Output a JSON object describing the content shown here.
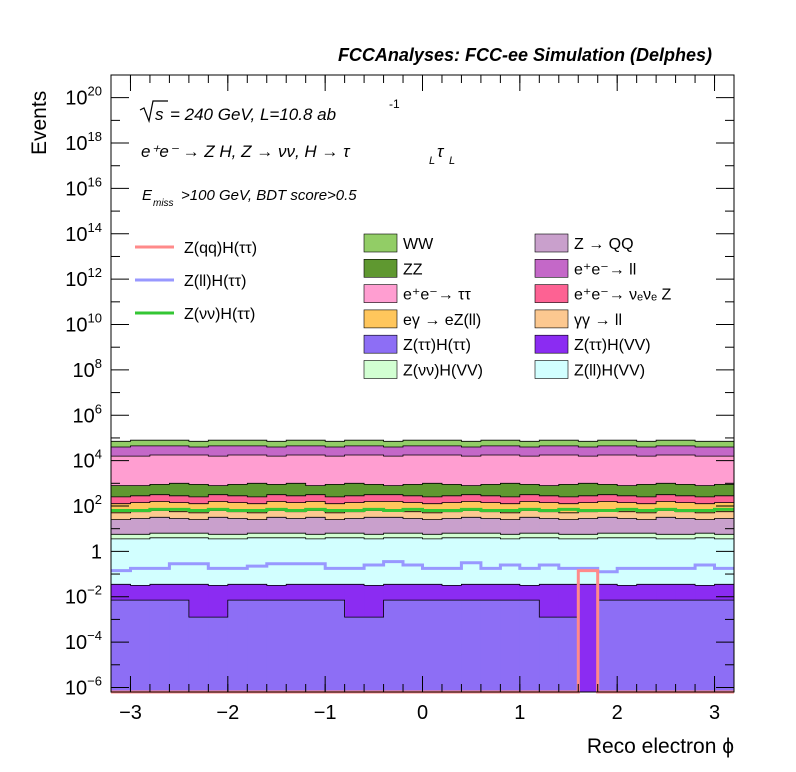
{
  "header": {
    "title": "FCCAnalyses: FCC-ee Simulation (Delphes)"
  },
  "annotations": {
    "line1_sqrt": "s",
    "line1_rest": "= 240 GeV, L=10.8 ab",
    "line1_exp": "-1",
    "line2": "e⁺e⁻ → Z H, Z → νν, H → τ",
    "line2_sub1": "L",
    "line2_tau2": "τ",
    "line2_sub2": "L",
    "line3_E": "E",
    "line3_sub": "miss",
    "line3_rest": ">100 GeV, BDT score>0.5"
  },
  "colors": {
    "WW": "#92cd66",
    "ZZ": "#5f9830",
    "ee_tautau": "#ff9ed1",
    "egamma_eZll": "#ffc65c",
    "Ztautau_Htautau": "#8d6ef5",
    "Znunu_HVV": "#d2ffd2",
    "Z_QQ": "#c9a0cc",
    "ee_ll": "#c468c8",
    "ee_nunuZ": "#fd6293",
    "gammagamma_ll": "#fcc890",
    "Ztautau_HVV": "#8b2cf2",
    "Zll_HVV": "#d2ffff",
    "sig_qq": "#ff8a8a",
    "sig_ll": "#9898ff",
    "sig_nunu": "#34c634"
  },
  "chart_data": {
    "type": "area",
    "title": "FCCAnalyses: FCC-ee Simulation (Delphes)",
    "xlabel": "Reco electron ϕ",
    "ylabel": "Events",
    "xlim": [
      -3.2,
      3.2
    ],
    "ylim_log10": [
      -6.2,
      21
    ],
    "y_scale": "log",
    "grid": false,
    "xticks": [
      "−3",
      "−2",
      "−1",
      "0",
      "1",
      "2",
      "3"
    ],
    "yticks": [
      "10^-6",
      "10^-4",
      "10^-2",
      "1",
      "10^2",
      "10^4",
      "10^6",
      "10^8",
      "10^10",
      "10^12",
      "10^14",
      "10^16",
      "10^18",
      "10^20"
    ],
    "legend_signal": [
      {
        "key": "sig_qq",
        "label": "Z(qq)H(ττ)"
      },
      {
        "key": "sig_ll",
        "label": "Z(ll)H(ττ)"
      },
      {
        "key": "sig_nunu",
        "label": "Z(νν)H(ττ)"
      }
    ],
    "legend_bkg": [
      {
        "key": "WW",
        "label": "WW"
      },
      {
        "key": "Z_QQ",
        "label": "Z → QQ"
      },
      {
        "key": "ZZ",
        "label": "ZZ"
      },
      {
        "key": "ee_ll",
        "label": "e⁺e⁻→ ll"
      },
      {
        "key": "ee_tautau",
        "label": "e⁺e⁻→ ττ"
      },
      {
        "key": "ee_nunuZ",
        "label": "e⁺e⁻→ νₑνₑ Z"
      },
      {
        "key": "egamma_eZll",
        "label": "eγ → eZ(ll)"
      },
      {
        "key": "gammagamma_ll",
        "label": "γγ → ll"
      },
      {
        "key": "Ztautau_Htautau",
        "label": "Z(ττ)H(ττ)"
      },
      {
        "key": "Ztautau_HVV",
        "label": "Z(ττ)H(VV)"
      },
      {
        "key": "Znunu_HVV",
        "label": "Z(νν)H(VV)"
      },
      {
        "key": "Zll_HVV",
        "label": "Z(ll)H(VV)"
      }
    ],
    "bin_edges": [
      -3.2,
      -3.0,
      -2.8,
      -2.6,
      -2.4,
      -2.2,
      -2.0,
      -1.8,
      -1.6,
      -1.4,
      -1.2,
      -1.0,
      -0.8,
      -0.6,
      -0.4,
      -0.2,
      0.0,
      0.2,
      0.4,
      0.6,
      0.8,
      1.0,
      1.2,
      1.4,
      1.6,
      1.8,
      2.0,
      2.2,
      2.4,
      2.6,
      2.8,
      3.0,
      3.2
    ],
    "stack_top_log10": {
      "Ztautau_Htautau": [
        -2.15,
        -2.15,
        -2.15,
        -2.15,
        -2.9,
        -2.9,
        -2.15,
        -2.15,
        -2.15,
        -2.15,
        -2.15,
        -2.15,
        -2.9,
        -2.9,
        -2.15,
        -2.15,
        -2.15,
        -2.15,
        -2.15,
        -2.15,
        -2.15,
        -2.15,
        -2.9,
        -2.9,
        -6.2,
        -2.15,
        -2.15,
        -2.15,
        -2.15,
        -2.15,
        -2.15,
        -2.15
      ],
      "Ztautau_HVV": [
        -1.45,
        -1.5,
        -1.45,
        -1.45,
        -1.45,
        -1.5,
        -1.45,
        -1.45,
        -1.5,
        -1.45,
        -1.45,
        -1.45,
        -1.45,
        -1.5,
        -1.45,
        -1.45,
        -1.45,
        -1.5,
        -1.45,
        -1.45,
        -1.45,
        -1.5,
        -1.45,
        -1.45,
        -1.45,
        -1.45,
        -1.5,
        -1.45,
        -1.45,
        -1.45,
        -1.5,
        -1.45
      ],
      "Zll_HVV": [
        0.55,
        0.55,
        0.6,
        0.6,
        0.6,
        0.55,
        0.55,
        0.6,
        0.6,
        0.6,
        0.55,
        0.6,
        0.6,
        0.55,
        0.6,
        0.6,
        0.55,
        0.6,
        0.6,
        0.6,
        0.55,
        0.6,
        0.6,
        0.55,
        0.55,
        0.6,
        0.6,
        0.6,
        0.55,
        0.55,
        0.6,
        0.55
      ],
      "Znunu_HVV": [
        0.75,
        0.75,
        0.8,
        0.8,
        0.8,
        0.75,
        0.75,
        0.8,
        0.8,
        0.8,
        0.75,
        0.8,
        0.8,
        0.75,
        0.8,
        0.8,
        0.75,
        0.8,
        0.8,
        0.8,
        0.75,
        0.8,
        0.8,
        0.75,
        0.75,
        0.8,
        0.8,
        0.8,
        0.75,
        0.75,
        0.8,
        0.75
      ],
      "Z_QQ": [
        1.4,
        1.45,
        1.5,
        1.45,
        1.4,
        1.5,
        1.45,
        1.4,
        1.5,
        1.45,
        1.5,
        1.4,
        1.45,
        1.5,
        1.5,
        1.45,
        1.4,
        1.45,
        1.5,
        1.45,
        1.4,
        1.5,
        1.45,
        1.4,
        1.45,
        1.5,
        1.45,
        1.4,
        1.5,
        1.45,
        1.4,
        1.45
      ],
      "gammagamma_ll": [
        1.7,
        1.75,
        1.8,
        1.75,
        1.7,
        1.8,
        1.75,
        1.7,
        1.8,
        1.75,
        1.8,
        1.7,
        1.75,
        1.8,
        1.8,
        1.75,
        1.7,
        1.75,
        1.8,
        1.75,
        1.7,
        1.8,
        1.75,
        1.7,
        1.75,
        1.8,
        1.75,
        1.7,
        1.8,
        1.75,
        1.7,
        1.75
      ],
      "egamma_eZll": [
        2.1,
        2.15,
        2.2,
        2.15,
        2.1,
        2.2,
        2.15,
        2.1,
        2.2,
        2.15,
        2.2,
        2.1,
        2.15,
        2.2,
        2.2,
        2.15,
        2.1,
        2.15,
        2.2,
        2.15,
        2.1,
        2.2,
        2.15,
        2.1,
        2.15,
        2.2,
        2.15,
        2.1,
        2.2,
        2.15,
        2.1,
        2.15
      ],
      "ee_nunuZ": [
        2.4,
        2.45,
        2.5,
        2.45,
        2.4,
        2.5,
        2.45,
        2.4,
        2.5,
        2.45,
        2.5,
        2.4,
        2.45,
        2.5,
        2.5,
        2.45,
        2.4,
        2.45,
        2.5,
        2.45,
        2.4,
        2.5,
        2.45,
        2.4,
        2.45,
        2.5,
        2.45,
        2.4,
        2.5,
        2.45,
        2.4,
        2.45
      ],
      "ZZ": [
        2.9,
        2.9,
        2.95,
        3.0,
        2.95,
        2.9,
        2.95,
        3.0,
        2.95,
        3.0,
        2.9,
        2.95,
        3.0,
        2.95,
        2.9,
        2.95,
        3.0,
        2.95,
        2.9,
        2.95,
        3.0,
        2.95,
        2.9,
        2.95,
        3.0,
        2.95,
        2.9,
        2.95,
        3.0,
        2.95,
        2.9,
        2.95
      ],
      "ee_tautau": [
        4.2,
        4.2,
        4.25,
        4.25,
        4.25,
        4.2,
        4.25,
        4.25,
        4.2,
        4.25,
        4.25,
        4.2,
        4.25,
        4.25,
        4.2,
        4.25,
        4.25,
        4.25,
        4.2,
        4.25,
        4.25,
        4.2,
        4.25,
        4.25,
        4.2,
        4.25,
        4.25,
        4.2,
        4.25,
        4.25,
        4.2,
        4.2
      ],
      "ee_ll": [
        4.6,
        4.65,
        4.65,
        4.65,
        4.6,
        4.65,
        4.65,
        4.65,
        4.6,
        4.65,
        4.65,
        4.6,
        4.65,
        4.65,
        4.6,
        4.65,
        4.65,
        4.65,
        4.6,
        4.65,
        4.65,
        4.6,
        4.65,
        4.65,
        4.6,
        4.65,
        4.65,
        4.6,
        4.65,
        4.65,
        4.6,
        4.6
      ],
      "WW": [
        4.85,
        4.9,
        4.9,
        4.9,
        4.85,
        4.9,
        4.9,
        4.9,
        4.85,
        4.9,
        4.9,
        4.85,
        4.9,
        4.9,
        4.85,
        4.9,
        4.9,
        4.9,
        4.85,
        4.9,
        4.9,
        4.85,
        4.9,
        4.9,
        4.85,
        4.9,
        4.9,
        4.85,
        4.9,
        4.9,
        4.85,
        4.85
      ]
    },
    "stack_order": [
      "Ztautau_Htautau",
      "Ztautau_HVV",
      "Zll_HVV",
      "Znunu_HVV",
      "Z_QQ",
      "gammagamma_ll",
      "egamma_eZll",
      "ee_nunuZ",
      "ZZ",
      "ee_tautau",
      "ee_ll",
      "WW"
    ],
    "signal_log10": {
      "sig_qq": [
        -6.2,
        -6.2,
        -6.2,
        -6.2,
        -6.2,
        -6.2,
        -6.2,
        -6.2,
        -6.2,
        -6.2,
        -6.2,
        -6.2,
        -6.2,
        -6.2,
        -6.2,
        -6.2,
        -6.2,
        -6.2,
        -6.2,
        -6.2,
        -6.2,
        -6.2,
        -6.2,
        -6.2,
        -0.85,
        -6.2,
        -6.2,
        -6.2,
        -6.2,
        -6.2,
        -6.2,
        -6.2
      ],
      "sig_ll": [
        -0.85,
        -0.75,
        -0.75,
        -0.55,
        -0.55,
        -0.75,
        -0.75,
        -0.65,
        -0.55,
        -0.55,
        -0.55,
        -0.75,
        -0.75,
        -0.6,
        -0.45,
        -0.6,
        -0.75,
        -0.75,
        -0.5,
        -0.75,
        -0.6,
        -0.75,
        -0.6,
        -0.75,
        -0.75,
        -0.9,
        -0.75,
        -0.75,
        -0.75,
        -0.75,
        -0.6,
        -0.75
      ],
      "sig_nunu": [
        1.8,
        1.8,
        1.85,
        1.85,
        1.8,
        1.85,
        1.8,
        1.8,
        1.85,
        1.8,
        1.85,
        1.8,
        1.8,
        1.85,
        1.8,
        1.85,
        1.8,
        1.8,
        1.85,
        1.8,
        1.8,
        1.85,
        1.8,
        1.85,
        1.8,
        1.8,
        1.85,
        1.8,
        1.85,
        1.8,
        1.8,
        1.85
      ]
    }
  }
}
